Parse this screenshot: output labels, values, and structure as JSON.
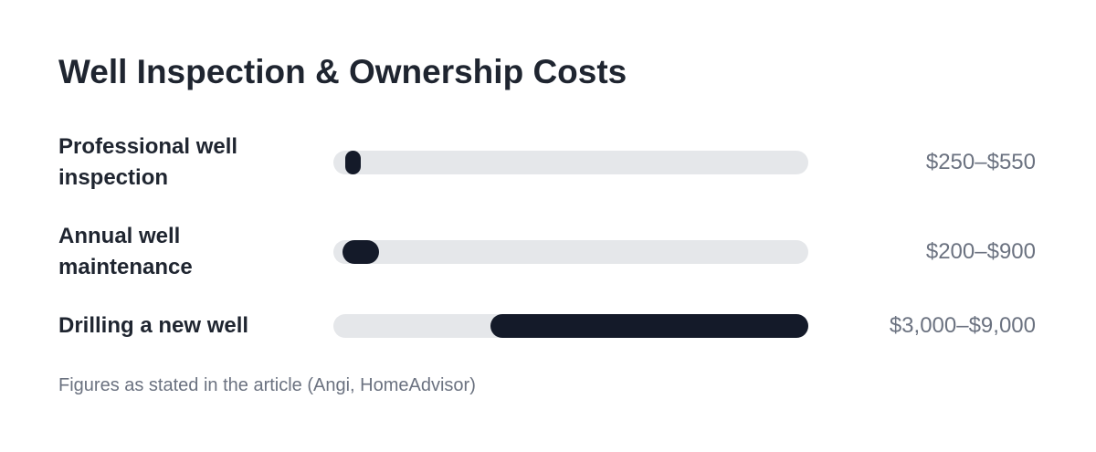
{
  "chart_data": {
    "type": "range-bar",
    "title": "Well Inspection & Ownership Costs",
    "categories": [
      "Professional well inspection",
      "Annual well maintenance",
      "Drilling a new well"
    ],
    "low": [
      250,
      200,
      3000
    ],
    "high": [
      550,
      900,
      9000
    ],
    "value_labels": [
      "$250–$550",
      "$200–$900",
      "$3,000–$9,000"
    ],
    "color": "#141a29",
    "xlim": [
      0,
      9000
    ],
    "note": "Figures as stated in the article (Angi, HomeAdvisor)"
  }
}
